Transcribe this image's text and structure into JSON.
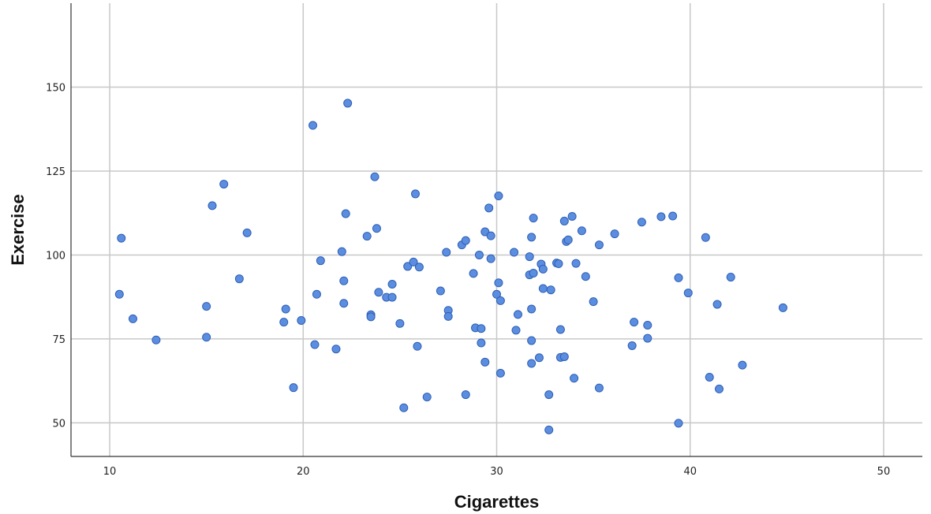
{
  "chart_data": {
    "type": "scatter",
    "title": "",
    "xlabel": "Cigarettes",
    "ylabel": "Exercise",
    "xlim": [
      8,
      52
    ],
    "ylim": [
      40,
      175
    ],
    "x_ticks": [
      10,
      20,
      30,
      40,
      50
    ],
    "y_ticks": [
      50,
      75,
      100,
      125,
      150
    ],
    "x_grid": true,
    "y_grid": true,
    "legend": "none",
    "marker_fill": "#5b8ee0",
    "marker_edge": "#2f5fb3",
    "grid_color": "#c8c8c8",
    "points": [
      {
        "x": 10.6,
        "y": 105
      },
      {
        "x": 10.5,
        "y": 88.3
      },
      {
        "x": 11.2,
        "y": 81
      },
      {
        "x": 12.4,
        "y": 74.7
      },
      {
        "x": 15,
        "y": 84.7
      },
      {
        "x": 15,
        "y": 75.5
      },
      {
        "x": 15.3,
        "y": 114.7
      },
      {
        "x": 15.9,
        "y": 121.1
      },
      {
        "x": 16.7,
        "y": 92.9
      },
      {
        "x": 17.1,
        "y": 106.6
      },
      {
        "x": 19,
        "y": 80
      },
      {
        "x": 19.1,
        "y": 83.9
      },
      {
        "x": 19.5,
        "y": 60.5
      },
      {
        "x": 19.9,
        "y": 80.5
      },
      {
        "x": 20.5,
        "y": 138.6
      },
      {
        "x": 20.6,
        "y": 73.3
      },
      {
        "x": 20.7,
        "y": 88.3
      },
      {
        "x": 20.9,
        "y": 98.3
      },
      {
        "x": 21.7,
        "y": 72
      },
      {
        "x": 22,
        "y": 101
      },
      {
        "x": 22.1,
        "y": 92.3
      },
      {
        "x": 22.1,
        "y": 85.6
      },
      {
        "x": 22.2,
        "y": 112.3
      },
      {
        "x": 22.3,
        "y": 145.2
      },
      {
        "x": 23.3,
        "y": 105.6
      },
      {
        "x": 23.5,
        "y": 82.2
      },
      {
        "x": 23.5,
        "y": 81.6
      },
      {
        "x": 23.7,
        "y": 123.3
      },
      {
        "x": 23.8,
        "y": 107.9
      },
      {
        "x": 23.9,
        "y": 88.9
      },
      {
        "x": 24.3,
        "y": 87.4
      },
      {
        "x": 24.6,
        "y": 91.3
      },
      {
        "x": 24.6,
        "y": 87.4
      },
      {
        "x": 25,
        "y": 79.6
      },
      {
        "x": 25.2,
        "y": 54.5
      },
      {
        "x": 25.4,
        "y": 96.6
      },
      {
        "x": 25.7,
        "y": 97.9
      },
      {
        "x": 25.8,
        "y": 118.2
      },
      {
        "x": 25.9,
        "y": 72.8
      },
      {
        "x": 26,
        "y": 96.4
      },
      {
        "x": 26.4,
        "y": 57.7
      },
      {
        "x": 27.1,
        "y": 89.3
      },
      {
        "x": 27.4,
        "y": 100.8
      },
      {
        "x": 27.5,
        "y": 83.5
      },
      {
        "x": 27.5,
        "y": 81.7
      },
      {
        "x": 28.2,
        "y": 103
      },
      {
        "x": 28.4,
        "y": 104.3
      },
      {
        "x": 28.4,
        "y": 58.4
      },
      {
        "x": 28.8,
        "y": 94.5
      },
      {
        "x": 28.9,
        "y": 78.3
      },
      {
        "x": 29.1,
        "y": 100
      },
      {
        "x": 29.2,
        "y": 78.1
      },
      {
        "x": 29.2,
        "y": 73.8
      },
      {
        "x": 29.4,
        "y": 106.9
      },
      {
        "x": 29.4,
        "y": 68.1
      },
      {
        "x": 29.6,
        "y": 114
      },
      {
        "x": 29.7,
        "y": 105.7
      },
      {
        "x": 29.7,
        "y": 98.9
      },
      {
        "x": 30,
        "y": 88.3
      },
      {
        "x": 30.1,
        "y": 91.7
      },
      {
        "x": 30.1,
        "y": 117.6
      },
      {
        "x": 30.2,
        "y": 86.4
      },
      {
        "x": 30.2,
        "y": 64.8
      },
      {
        "x": 30.9,
        "y": 100.8
      },
      {
        "x": 31,
        "y": 77.6
      },
      {
        "x": 31.1,
        "y": 82.3
      },
      {
        "x": 31.7,
        "y": 99.5
      },
      {
        "x": 31.7,
        "y": 94.1
      },
      {
        "x": 31.8,
        "y": 105.3
      },
      {
        "x": 31.8,
        "y": 83.9
      },
      {
        "x": 31.8,
        "y": 67.7
      },
      {
        "x": 31.8,
        "y": 74.5
      },
      {
        "x": 31.9,
        "y": 111
      },
      {
        "x": 31.9,
        "y": 94.6
      },
      {
        "x": 32.2,
        "y": 69.4
      },
      {
        "x": 32.3,
        "y": 97.3
      },
      {
        "x": 32.4,
        "y": 95.8
      },
      {
        "x": 32.4,
        "y": 90
      },
      {
        "x": 32.7,
        "y": 58.4
      },
      {
        "x": 32.7,
        "y": 47.9
      },
      {
        "x": 32.8,
        "y": 89.6
      },
      {
        "x": 33.1,
        "y": 97.6
      },
      {
        "x": 33.2,
        "y": 97.4
      },
      {
        "x": 33.3,
        "y": 77.8
      },
      {
        "x": 33.3,
        "y": 69.5
      },
      {
        "x": 33.5,
        "y": 69.7
      },
      {
        "x": 33.5,
        "y": 110.1
      },
      {
        "x": 33.6,
        "y": 104
      },
      {
        "x": 33.7,
        "y": 104.5
      },
      {
        "x": 33.9,
        "y": 111.5
      },
      {
        "x": 34,
        "y": 63.3
      },
      {
        "x": 34.1,
        "y": 97.5
      },
      {
        "x": 34.4,
        "y": 107.2
      },
      {
        "x": 34.6,
        "y": 93.6
      },
      {
        "x": 35,
        "y": 86.1
      },
      {
        "x": 35.3,
        "y": 103
      },
      {
        "x": 35.3,
        "y": 60.4
      },
      {
        "x": 36.1,
        "y": 106.3
      },
      {
        "x": 37,
        "y": 73
      },
      {
        "x": 37.1,
        "y": 80
      },
      {
        "x": 37.5,
        "y": 109.8
      },
      {
        "x": 37.8,
        "y": 79.1
      },
      {
        "x": 37.8,
        "y": 75.2
      },
      {
        "x": 38.5,
        "y": 111.4
      },
      {
        "x": 39.1,
        "y": 111.6
      },
      {
        "x": 39.4,
        "y": 93.2
      },
      {
        "x": 39.4,
        "y": 49.9
      },
      {
        "x": 39.9,
        "y": 88.7
      },
      {
        "x": 40.8,
        "y": 105.2
      },
      {
        "x": 41,
        "y": 63.6
      },
      {
        "x": 41.4,
        "y": 85.3
      },
      {
        "x": 41.5,
        "y": 60.1
      },
      {
        "x": 42.1,
        "y": 93.4
      },
      {
        "x": 42.7,
        "y": 67.2
      },
      {
        "x": 44.8,
        "y": 84.3
      }
    ]
  }
}
